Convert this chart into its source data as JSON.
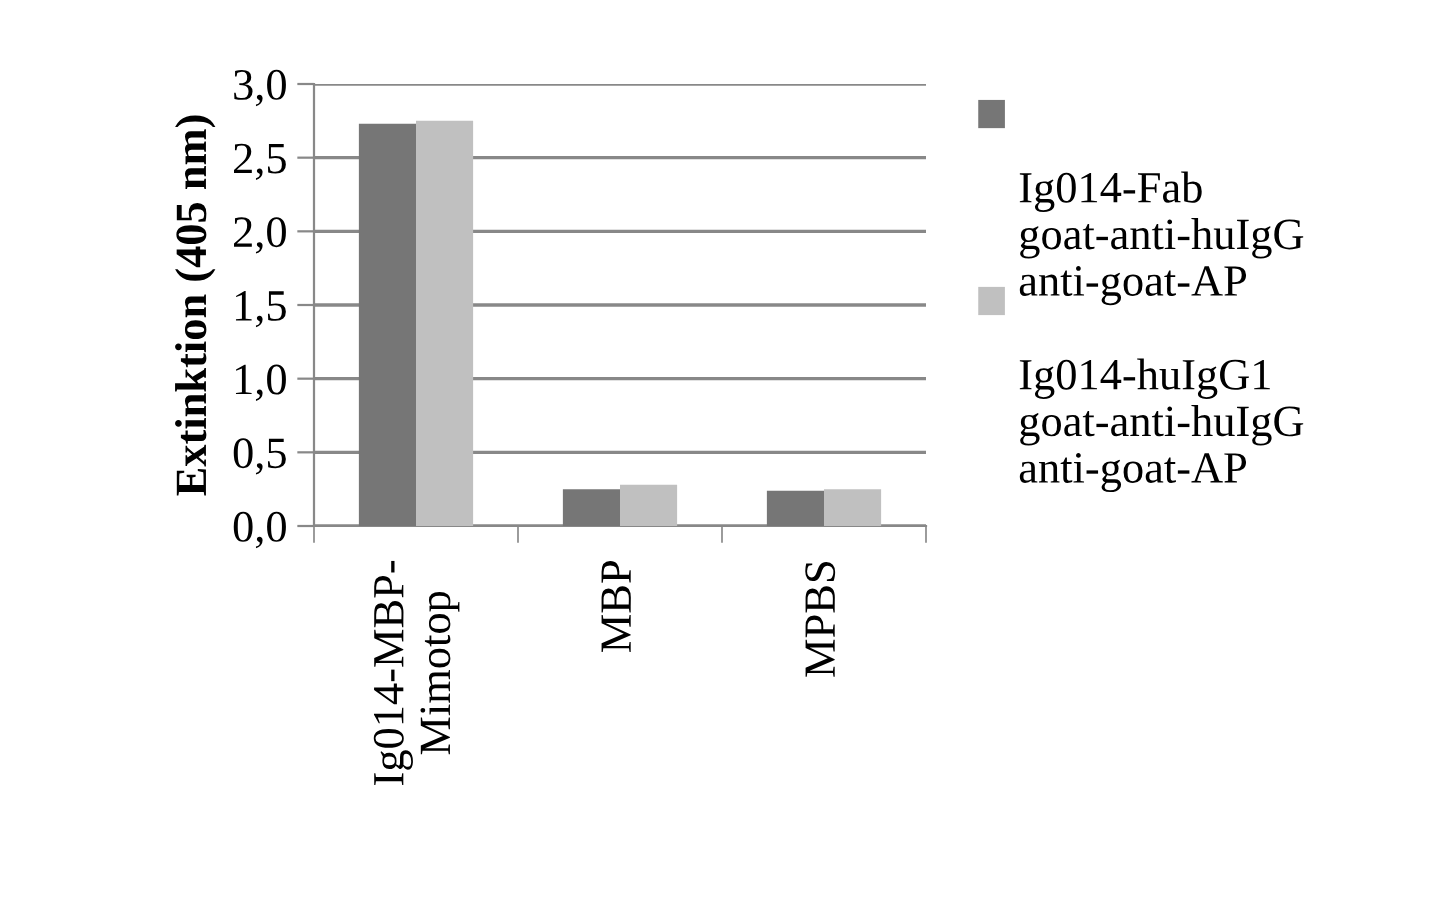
{
  "chart_data": {
    "type": "bar",
    "ylabel": "Extinktion (405 nm)",
    "categories": [
      "Ig014-MBP-\nMimotop",
      "MBP",
      "MPBS"
    ],
    "series": [
      {
        "name": "Ig014-Fab\ngoat-anti-huIgG\nanti-goat-AP",
        "color": "#767676",
        "values": [
          2.73,
          0.25,
          0.24
        ]
      },
      {
        "name": "Ig014-huIgG1\ngoat-anti-huIgG\nanti-goat-AP",
        "color": "#c0c0c0",
        "values": [
          2.75,
          0.28,
          0.25
        ]
      }
    ],
    "ylim": [
      0,
      3.0
    ],
    "yticks": [
      {
        "value": 0,
        "label": "0,0"
      },
      {
        "value": 0.5,
        "label": "0,5"
      },
      {
        "value": 1.0,
        "label": "1,0"
      },
      {
        "value": 1.5,
        "label": "1,5"
      },
      {
        "value": 2.0,
        "label": "2,0"
      },
      {
        "value": 2.5,
        "label": "2,5"
      },
      {
        "value": 3.0,
        "label": "3,0"
      }
    ],
    "grid": "y",
    "legend": "right"
  }
}
